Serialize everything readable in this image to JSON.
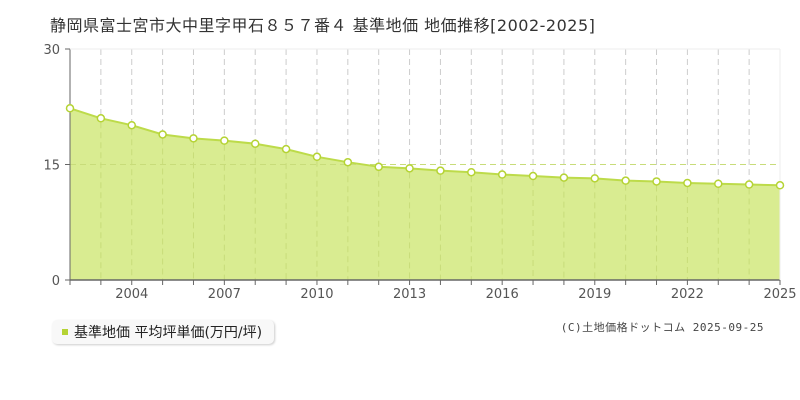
{
  "title": "静岡県富士宮市大中里字甲石８５７番４ 基準地価 地価推移[2002-2025]",
  "legend": {
    "label": "基準地価 平均坪単価(万円/坪)",
    "color": "#b5d334"
  },
  "copyright": "(C)土地価格ドットコム 2025-09-25",
  "colors": {
    "fill": "#d9ec91",
    "line": "#bddb4a",
    "marker_stroke": "#b5d334",
    "marker_fill": "#ffffff",
    "grid": "#cccccc",
    "axis": "#666666"
  },
  "chart_data": {
    "type": "area",
    "title": "静岡県富士宮市大中里字甲石８５７番４ 基準地価 地価推移[2002-2025]",
    "xlabel": "",
    "ylabel": "",
    "ylim": [
      0,
      30
    ],
    "yticks": [
      0,
      15,
      30
    ],
    "xtick_labels": [
      "2004",
      "2007",
      "2010",
      "2013",
      "2016",
      "2019",
      "2022",
      "2025"
    ],
    "grid": true,
    "legend_position": "bottom-left",
    "series": [
      {
        "name": "基準地価 平均坪単価(万円/坪)",
        "x": [
          2002,
          2003,
          2004,
          2005,
          2006,
          2007,
          2008,
          2009,
          2010,
          2011,
          2012,
          2013,
          2014,
          2015,
          2016,
          2017,
          2018,
          2019,
          2020,
          2021,
          2022,
          2023,
          2024,
          2025
        ],
        "values": [
          22.3,
          21.0,
          20.1,
          18.9,
          18.4,
          18.1,
          17.7,
          17.0,
          16.0,
          15.3,
          14.7,
          14.5,
          14.2,
          14.0,
          13.7,
          13.5,
          13.3,
          13.2,
          12.9,
          12.8,
          12.6,
          12.5,
          12.4,
          12.3
        ]
      }
    ]
  }
}
